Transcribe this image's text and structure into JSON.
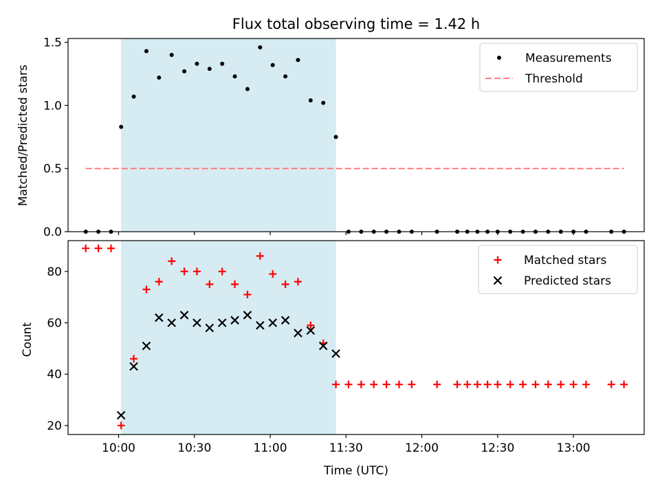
{
  "figure": {
    "title": "Flux total observing time = 1.42 h",
    "xlabel": "Time (UTC)"
  },
  "chart_data": [
    {
      "type": "scatter",
      "ylabel": "Matched/Predicted stars",
      "ylim": [
        0,
        1.53
      ],
      "yticks": [
        0.0,
        0.5,
        1.0,
        1.5
      ],
      "ytick_labels": [
        "0.0",
        "0.5",
        "1.0",
        "1.5"
      ],
      "xticks_hidden": true,
      "legend_position": "upper right",
      "shaded_span": {
        "x_start": "10:01",
        "x_end": "11:26",
        "color": "#add8e6"
      },
      "series": [
        {
          "name": "Measurements",
          "marker": "dot",
          "color": "#000000",
          "x": [
            "09:47",
            "09:52",
            "09:57",
            "10:01",
            "10:06",
            "10:11",
            "10:16",
            "10:21",
            "10:26",
            "10:31",
            "10:36",
            "10:41",
            "10:46",
            "10:51",
            "10:56",
            "11:01",
            "11:06",
            "11:11",
            "11:16",
            "11:21",
            "11:26",
            "11:31",
            "11:36",
            "11:41",
            "11:46",
            "11:51",
            "11:56",
            "12:06",
            "12:14",
            "12:18",
            "12:22",
            "12:26",
            "12:30",
            "12:35",
            "12:40",
            "12:45",
            "12:50",
            "12:55",
            "13:00",
            "13:05",
            "13:15",
            "13:20"
          ],
          "y": [
            0,
            0,
            0,
            0.83,
            1.07,
            1.43,
            1.22,
            1.4,
            1.27,
            1.33,
            1.29,
            1.33,
            1.23,
            1.13,
            1.46,
            1.32,
            1.23,
            1.36,
            1.04,
            1.02,
            0.75,
            0,
            0,
            0,
            0,
            0,
            0,
            0,
            0,
            0,
            0,
            0,
            0,
            0,
            0,
            0,
            0,
            0,
            0,
            0,
            0,
            0
          ]
        },
        {
          "name": "Threshold",
          "style": "dashed",
          "color": "#ff7f7f",
          "x": [
            "09:47",
            "13:20"
          ],
          "y": [
            0.5,
            0.5
          ]
        }
      ]
    },
    {
      "type": "scatter",
      "ylabel": "Count",
      "ylim": [
        16.5,
        92
      ],
      "yticks": [
        20,
        40,
        60,
        80
      ],
      "ytick_labels": [
        "20",
        "40",
        "60",
        "80"
      ],
      "xticks": [
        "10:00",
        "10:30",
        "11:00",
        "11:30",
        "12:00",
        "12:30",
        "13:00"
      ],
      "legend_position": "upper right",
      "shaded_span": {
        "x_start": "10:01",
        "x_end": "11:26",
        "color": "#add8e6"
      },
      "series": [
        {
          "name": "Matched stars",
          "marker": "plus",
          "color": "#ff0000",
          "x": [
            "09:47",
            "09:52",
            "09:57",
            "10:01",
            "10:06",
            "10:11",
            "10:16",
            "10:21",
            "10:26",
            "10:31",
            "10:36",
            "10:41",
            "10:46",
            "10:51",
            "10:56",
            "11:01",
            "11:06",
            "11:11",
            "11:16",
            "11:21",
            "11:26",
            "11:31",
            "11:36",
            "11:41",
            "11:46",
            "11:51",
            "11:56",
            "12:06",
            "12:14",
            "12:18",
            "12:22",
            "12:26",
            "12:30",
            "12:35",
            "12:40",
            "12:45",
            "12:50",
            "12:55",
            "13:00",
            "13:05",
            "13:15",
            "13:20"
          ],
          "y": [
            89,
            89,
            89,
            20,
            46,
            73,
            76,
            84,
            80,
            80,
            75,
            80,
            75,
            71,
            86,
            79,
            75,
            76,
            59,
            52,
            36,
            36,
            36,
            36,
            36,
            36,
            36,
            36,
            36,
            36,
            36,
            36,
            36,
            36,
            36,
            36,
            36,
            36,
            36,
            36,
            36,
            36
          ]
        },
        {
          "name": "Predicted stars",
          "marker": "x",
          "color": "#000000",
          "x": [
            "10:01",
            "10:06",
            "10:11",
            "10:16",
            "10:21",
            "10:26",
            "10:31",
            "10:36",
            "10:41",
            "10:46",
            "10:51",
            "10:56",
            "11:01",
            "11:06",
            "11:11",
            "11:16",
            "11:21",
            "11:26"
          ],
          "y": [
            24,
            43,
            51,
            62,
            60,
            63,
            60,
            58,
            60,
            61,
            63,
            59,
            60,
            61,
            56,
            57,
            51,
            48
          ]
        }
      ]
    }
  ]
}
